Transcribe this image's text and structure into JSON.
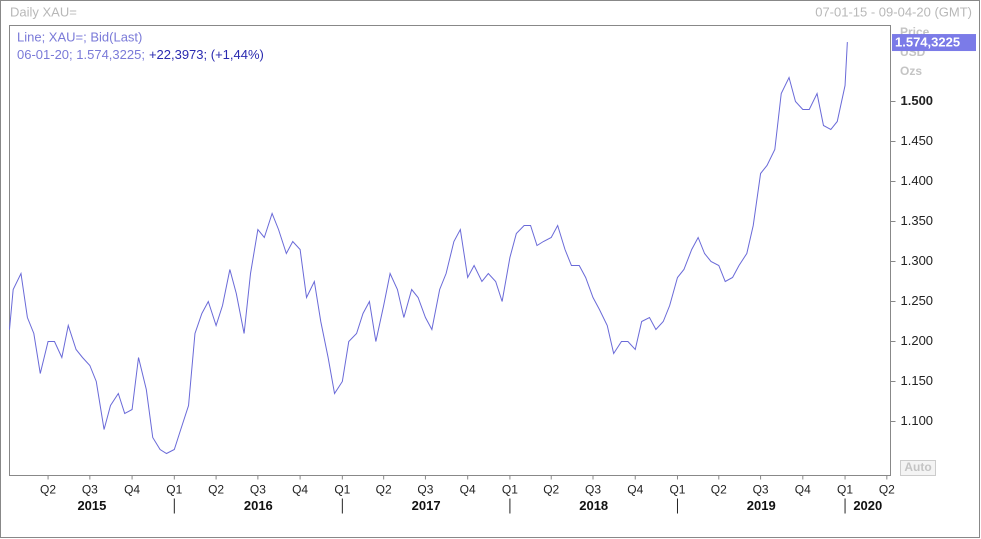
{
  "header": {
    "title": "Daily XAU=",
    "range": "07-01-15 - 09-04-20 (GMT)"
  },
  "chart_data": {
    "type": "line",
    "legend_detail": "06-01-20; 1.574,3225;",
    "legend_change": "+22,3973; (+1,44%)",
    "axis_labels": [
      "Price",
      "USD",
      "Ozs"
    ],
    "last_label": "1.574,3225",
    "auto_button": "Auto",
    "x": [
      "07-01-15",
      "15-01-15",
      "01-02-15",
      "15-02-15",
      "01-03-15",
      "15-03-15",
      "01-04-15",
      "15-04-15",
      "01-05-15",
      "15-05-15",
      "01-06-15",
      "15-06-15",
      "01-07-15",
      "15-07-15",
      "01-08-15",
      "15-08-15",
      "01-09-15",
      "15-09-15",
      "01-10-15",
      "15-10-15",
      "01-11-15",
      "15-11-15",
      "01-12-15",
      "15-12-15",
      "01-01-16",
      "15-01-16",
      "01-02-16",
      "15-02-16",
      "01-03-16",
      "15-03-16",
      "01-04-16",
      "15-04-16",
      "01-05-16",
      "15-05-16",
      "01-06-16",
      "15-06-16",
      "01-07-16",
      "15-07-16",
      "01-08-16",
      "15-08-16",
      "01-09-16",
      "15-09-16",
      "01-10-16",
      "15-10-16",
      "01-11-16",
      "15-11-16",
      "01-12-16",
      "15-12-16",
      "01-01-17",
      "15-01-17",
      "01-02-17",
      "15-02-17",
      "01-03-17",
      "15-03-17",
      "01-04-17",
      "15-04-17",
      "01-05-17",
      "15-05-17",
      "01-06-17",
      "15-06-17",
      "01-07-17",
      "15-07-17",
      "01-08-17",
      "15-08-17",
      "01-09-17",
      "15-09-17",
      "01-10-17",
      "15-10-17",
      "01-11-17",
      "15-11-17",
      "01-12-17",
      "15-12-17",
      "01-01-18",
      "15-01-18",
      "01-02-18",
      "15-02-18",
      "01-03-18",
      "15-03-18",
      "01-04-18",
      "15-04-18",
      "01-05-18",
      "15-05-18",
      "01-06-18",
      "15-06-18",
      "01-07-18",
      "15-07-18",
      "01-08-18",
      "15-08-18",
      "01-09-18",
      "15-09-18",
      "01-10-18",
      "15-10-18",
      "01-11-18",
      "15-11-18",
      "01-12-18",
      "15-12-18",
      "01-01-19",
      "15-01-19",
      "01-02-19",
      "15-02-19",
      "01-03-19",
      "15-03-19",
      "01-04-19",
      "15-04-19",
      "01-05-19",
      "15-05-19",
      "01-06-19",
      "15-06-19",
      "01-07-19",
      "15-07-19",
      "01-08-19",
      "15-08-19",
      "01-09-19",
      "15-09-19",
      "01-10-19",
      "15-10-19",
      "01-11-19",
      "15-11-19",
      "01-12-19",
      "15-12-19",
      "01-01-20",
      "06-01-20"
    ],
    "series": [
      {
        "name": "Line; XAU=; Bid(Last)",
        "color": "#6a6ad8",
        "values": [
          1215,
          1265,
          1285,
          1230,
          1210,
          1160,
          1200,
          1200,
          1180,
          1220,
          1190,
          1180,
          1170,
          1150,
          1090,
          1120,
          1135,
          1110,
          1115,
          1180,
          1140,
          1080,
          1065,
          1060,
          1065,
          1090,
          1120,
          1210,
          1235,
          1250,
          1220,
          1245,
          1290,
          1260,
          1210,
          1285,
          1340,
          1330,
          1360,
          1340,
          1310,
          1325,
          1315,
          1255,
          1275,
          1225,
          1180,
          1135,
          1150,
          1200,
          1210,
          1235,
          1250,
          1200,
          1245,
          1285,
          1265,
          1230,
          1265,
          1255,
          1230,
          1215,
          1265,
          1285,
          1325,
          1340,
          1280,
          1295,
          1275,
          1285,
          1275,
          1250,
          1305,
          1335,
          1345,
          1345,
          1320,
          1325,
          1330,
          1345,
          1315,
          1295,
          1295,
          1280,
          1255,
          1240,
          1220,
          1185,
          1200,
          1200,
          1190,
          1225,
          1230,
          1215,
          1225,
          1245,
          1280,
          1290,
          1315,
          1330,
          1310,
          1300,
          1295,
          1275,
          1280,
          1295,
          1310,
          1345,
          1410,
          1420,
          1440,
          1510,
          1530,
          1500,
          1490,
          1490,
          1510,
          1470,
          1465,
          1475,
          1520,
          1574.3225
        ]
      }
    ],
    "xlim": [
      "07-01-15",
      "09-04-20"
    ],
    "ylim": [
      1032.5,
      1595
    ],
    "yticks": [
      {
        "value": 1100,
        "label": "1.100"
      },
      {
        "value": 1150,
        "label": "1.150"
      },
      {
        "value": 1200,
        "label": "1.200"
      },
      {
        "value": 1250,
        "label": "1.250"
      },
      {
        "value": 1300,
        "label": "1.300"
      },
      {
        "value": 1350,
        "label": "1.350"
      },
      {
        "value": 1400,
        "label": "1.400"
      },
      {
        "value": 1450,
        "label": "1.450"
      },
      {
        "value": 1500,
        "label": "1.500"
      }
    ],
    "xticks": [
      {
        "value": "01-04-15",
        "label": "Q2"
      },
      {
        "value": "01-07-15",
        "label": "Q3"
      },
      {
        "value": "01-10-15",
        "label": "Q4"
      },
      {
        "value": "01-01-16",
        "label": "Q1"
      },
      {
        "value": "01-04-16",
        "label": "Q2"
      },
      {
        "value": "01-07-16",
        "label": "Q3"
      },
      {
        "value": "01-10-16",
        "label": "Q4"
      },
      {
        "value": "01-01-17",
        "label": "Q1"
      },
      {
        "value": "01-04-17",
        "label": "Q2"
      },
      {
        "value": "01-07-17",
        "label": "Q3"
      },
      {
        "value": "01-10-17",
        "label": "Q4"
      },
      {
        "value": "01-01-18",
        "label": "Q1"
      },
      {
        "value": "01-04-18",
        "label": "Q2"
      },
      {
        "value": "01-07-18",
        "label": "Q3"
      },
      {
        "value": "01-10-18",
        "label": "Q4"
      },
      {
        "value": "01-01-19",
        "label": "Q1"
      },
      {
        "value": "01-04-19",
        "label": "Q2"
      },
      {
        "value": "01-07-19",
        "label": "Q3"
      },
      {
        "value": "01-10-19",
        "label": "Q4"
      },
      {
        "value": "01-01-20",
        "label": "Q1"
      },
      {
        "value": "01-04-20",
        "label": "Q2"
      }
    ],
    "year_labels": [
      {
        "value": "01-01-15",
        "label": "2015"
      },
      {
        "value": "01-01-16",
        "label": "2016"
      },
      {
        "value": "01-01-17",
        "label": "2017"
      },
      {
        "value": "01-01-18",
        "label": "2018"
      },
      {
        "value": "01-01-19",
        "label": "2019"
      },
      {
        "value": "01-01-20",
        "label": "2020"
      }
    ]
  }
}
